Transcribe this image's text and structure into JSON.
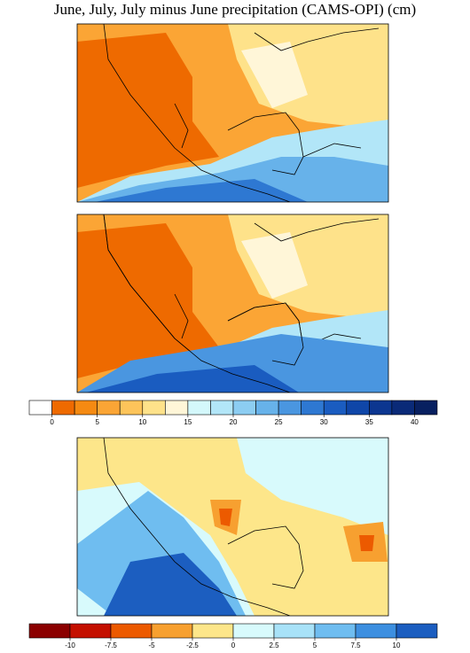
{
  "title": "June, July, July minus June precipitation (CAMS-OPI) (cm)",
  "colorbar_1": {
    "lim": [
      -2.5,
      42.5
    ],
    "ticks": [
      0,
      5,
      10,
      15,
      20,
      25,
      30,
      35,
      40
    ],
    "colors": [
      "#ffffff",
      "#ee6a00",
      "#f58a12",
      "#fba535",
      "#fdc45a",
      "#fee28a",
      "#fff6d8",
      "#d4f8fb",
      "#b2e6f8",
      "#8ccdf2",
      "#67b2ea",
      "#4a96e0",
      "#2e78d2",
      "#1a5cc0",
      "#0f46a8",
      "#0c3690",
      "#0a2a78",
      "#082060"
    ]
  },
  "colorbar_2": {
    "lim": [
      -12.5,
      12.5
    ],
    "ticks": [
      -10,
      -7.5,
      -5,
      -2.5,
      0,
      2.5,
      5,
      7.5,
      10
    ],
    "colors": [
      "#8b0000",
      "#c41000",
      "#ec5a00",
      "#f7a030",
      "#fde68a",
      "#d8fafc",
      "#a8e2f8",
      "#6fbdf0",
      "#3d8fe0",
      "#1c5ec0"
    ]
  }
}
